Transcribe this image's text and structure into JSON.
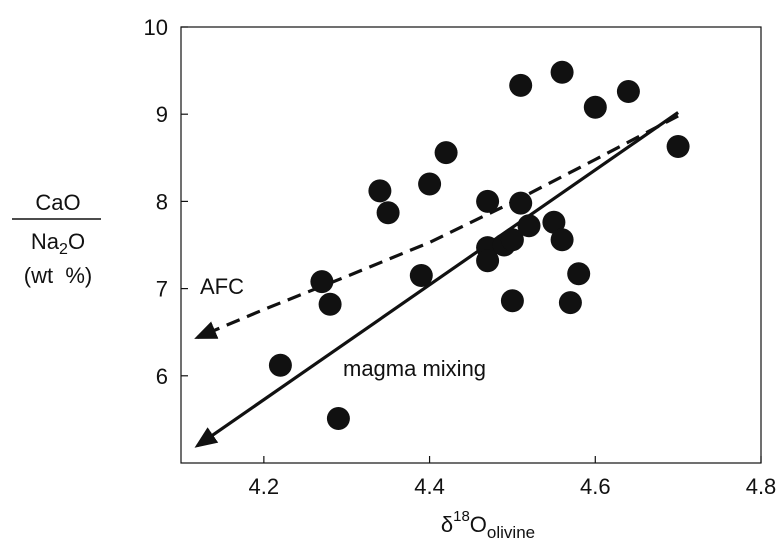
{
  "chart_data": {
    "type": "scatter",
    "title": "",
    "xlabel": {
      "delta": "δ",
      "superscript": "18",
      "base": "O",
      "subscript": "olivine"
    },
    "ylabel": {
      "numerator": "CaO",
      "denominator_prefix": "Na",
      "denominator_sub": "2",
      "denominator_suffix": "O",
      "units": "(wt  %)"
    },
    "xlim": [
      4.1,
      4.8
    ],
    "ylim": [
      5.0,
      10.0
    ],
    "xticks": [
      4.2,
      4.4,
      4.6,
      4.8
    ],
    "xtick_labels": [
      "4.2",
      "4.4",
      "4.6",
      "4.8"
    ],
    "yticks": [
      6,
      7,
      8,
      9,
      10
    ],
    "ytick_labels": [
      "6",
      "7",
      "8",
      "9",
      "10"
    ],
    "grid": false,
    "points": [
      {
        "x": 4.22,
        "y": 6.12
      },
      {
        "x": 4.27,
        "y": 7.08
      },
      {
        "x": 4.28,
        "y": 6.82
      },
      {
        "x": 4.29,
        "y": 5.51
      },
      {
        "x": 4.34,
        "y": 8.12
      },
      {
        "x": 4.35,
        "y": 7.87
      },
      {
        "x": 4.39,
        "y": 7.15
      },
      {
        "x": 4.4,
        "y": 8.2
      },
      {
        "x": 4.42,
        "y": 8.56
      },
      {
        "x": 4.47,
        "y": 8.0
      },
      {
        "x": 4.47,
        "y": 7.47
      },
      {
        "x": 4.47,
        "y": 7.32
      },
      {
        "x": 4.49,
        "y": 7.5
      },
      {
        "x": 4.5,
        "y": 7.56
      },
      {
        "x": 4.5,
        "y": 6.86
      },
      {
        "x": 4.51,
        "y": 7.98
      },
      {
        "x": 4.51,
        "y": 9.33
      },
      {
        "x": 4.52,
        "y": 7.72
      },
      {
        "x": 4.55,
        "y": 7.76
      },
      {
        "x": 4.56,
        "y": 9.48
      },
      {
        "x": 4.56,
        "y": 7.56
      },
      {
        "x": 4.57,
        "y": 6.84
      },
      {
        "x": 4.58,
        "y": 7.17
      },
      {
        "x": 4.6,
        "y": 9.08
      },
      {
        "x": 4.64,
        "y": 9.26
      },
      {
        "x": 4.7,
        "y": 8.63
      }
    ],
    "lines": [
      {
        "label": "magma mixing",
        "style": "solid",
        "x": [
          4.7,
          4.12
        ],
        "y": [
          9.02,
          5.2
        ]
      },
      {
        "label": "AFC",
        "style": "dashed",
        "x": [
          4.7,
          4.6,
          4.5,
          4.4,
          4.3,
          4.2,
          4.12
        ],
        "y": [
          8.98,
          8.48,
          7.99,
          7.53,
          7.14,
          6.76,
          6.44
        ]
      }
    ],
    "annotations": {
      "afc": "AFC",
      "mixing": "magma mixing"
    }
  }
}
